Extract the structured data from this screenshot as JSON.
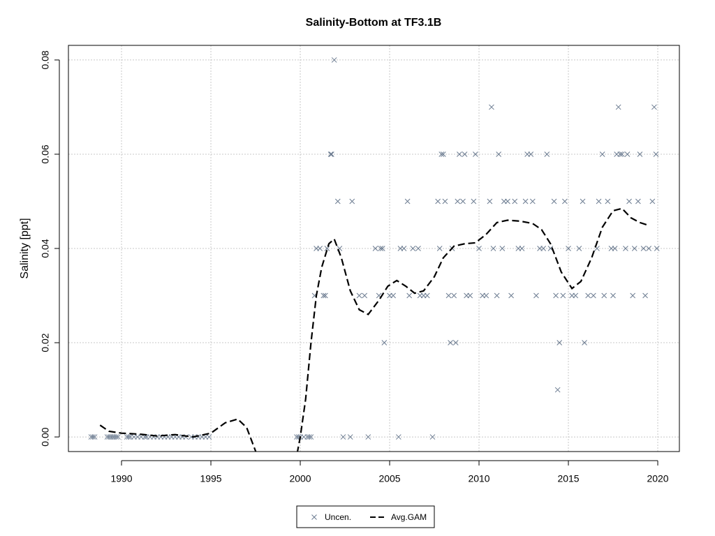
{
  "chart_data": {
    "type": "scatter",
    "title": "Salinity-Bottom at TF3.1B",
    "y_label": "Salinity [ppt]",
    "xlim": [
      1987.03,
      2021.21
    ],
    "ylim": [
      -0.0031,
      0.0831
    ],
    "xticks": [
      1990,
      1995,
      2000,
      2005,
      2010,
      2015,
      2020
    ],
    "yticks": [
      {
        "value": 0,
        "label": "0.00"
      },
      {
        "value": 0.02,
        "label": "0.02"
      },
      {
        "value": 0.04,
        "label": "0.04"
      },
      {
        "value": 0.06,
        "label": "0.06"
      },
      {
        "value": 0.08,
        "label": "0.08"
      }
    ],
    "grid": true,
    "legend": "bottom",
    "series": [
      {
        "name": "Uncen.",
        "type": "scatter",
        "color": "#6b7b90",
        "x": [
          1988.3,
          1988.4,
          1988.5,
          1989.2,
          1989.3,
          1989.4,
          1989.5,
          1989.6,
          1989.7,
          1989.8,
          1990.3,
          1990.4,
          1990.5,
          1990.7,
          1990.9,
          1991.1,
          1991.3,
          1991.4,
          1991.6,
          1991.8,
          1992.0,
          1992.2,
          1992.4,
          1992.6,
          1992.8,
          1993.0,
          1993.2,
          1993.4,
          1993.6,
          1993.9,
          1994.1,
          1994.3,
          1994.5,
          1994.7,
          1994.9,
          1999.8,
          1999.9,
          2000.0,
          2000.2,
          2000.4,
          2000.5,
          2000.6,
          2000.8,
          2000.9,
          2001.1,
          2001.3,
          2001.4,
          2001.5,
          2001.7,
          2001.75,
          2001.9,
          2002.1,
          2002.2,
          2002.4,
          2002.8,
          2002.9,
          2003.3,
          2003.6,
          2003.8,
          2004.2,
          2004.4,
          2004.5,
          2004.6,
          2004.7,
          2005.0,
          2005.2,
          2005.5,
          2005.6,
          2005.8,
          2006.0,
          2006.1,
          2006.3,
          2006.6,
          2006.7,
          2006.9,
          2007.1,
          2007.4,
          2007.7,
          2007.8,
          2007.9,
          2008.0,
          2008.1,
          2008.3,
          2008.4,
          2008.5,
          2008.6,
          2008.7,
          2008.8,
          2008.9,
          2009.1,
          2009.2,
          2009.3,
          2009.5,
          2009.7,
          2009.8,
          2010.0,
          2010.2,
          2010.4,
          2010.6,
          2010.7,
          2010.8,
          2011.0,
          2011.1,
          2011.3,
          2011.4,
          2011.6,
          2011.8,
          2012.0,
          2012.2,
          2012.4,
          2012.6,
          2012.7,
          2012.9,
          2013.0,
          2013.2,
          2013.4,
          2013.6,
          2013.8,
          2014.0,
          2014.2,
          2014.3,
          2014.4,
          2014.5,
          2014.7,
          2014.8,
          2015.0,
          2015.2,
          2015.4,
          2015.6,
          2015.8,
          2015.9,
          2016.1,
          2016.4,
          2016.6,
          2016.7,
          2016.9,
          2017.0,
          2017.2,
          2017.4,
          2017.5,
          2017.6,
          2017.7,
          2017.8,
          2017.9,
          2018.0,
          2018.2,
          2018.3,
          2018.4,
          2018.6,
          2018.7,
          2018.9,
          2019.0,
          2019.2,
          2019.3,
          2019.5,
          2019.7,
          2019.8,
          2019.9,
          2019.95
        ],
        "values": [
          0,
          0,
          0,
          0,
          0,
          0,
          0,
          0,
          0,
          0,
          0,
          0,
          0,
          0,
          0,
          0,
          0,
          0,
          0,
          0,
          0,
          0,
          0,
          0,
          0,
          0,
          0,
          0,
          0,
          0,
          0,
          0,
          0,
          0,
          0,
          0,
          0,
          0,
          0,
          0,
          0,
          0,
          0.03,
          0.04,
          0.04,
          0.03,
          0.03,
          0.04,
          0.06,
          0.06,
          0.08,
          0.05,
          0.04,
          0,
          0,
          0.05,
          0.03,
          0.03,
          0,
          0.04,
          0.03,
          0.04,
          0.04,
          0.02,
          0.03,
          0.03,
          0,
          0.04,
          0.04,
          0.05,
          0.03,
          0.04,
          0.04,
          0.03,
          0.03,
          0.03,
          0,
          0.05,
          0.04,
          0.06,
          0.06,
          0.05,
          0.03,
          0.02,
          0.04,
          0.03,
          0.02,
          0.05,
          0.06,
          0.05,
          0.06,
          0.03,
          0.03,
          0.05,
          0.06,
          0.04,
          0.03,
          0.03,
          0.05,
          0.07,
          0.04,
          0.03,
          0.06,
          0.04,
          0.05,
          0.05,
          0.03,
          0.05,
          0.04,
          0.04,
          0.05,
          0.06,
          0.06,
          0.05,
          0.03,
          0.04,
          0.04,
          0.06,
          0.04,
          0.05,
          0.03,
          0.01,
          0.02,
          0.03,
          0.05,
          0.04,
          0.03,
          0.03,
          0.04,
          0.05,
          0.02,
          0.03,
          0.03,
          0.04,
          0.05,
          0.06,
          0.03,
          0.05,
          0.04,
          0.03,
          0.04,
          0.06,
          0.07,
          0.06,
          0.06,
          0.04,
          0.06,
          0.05,
          0.03,
          0.04,
          0.05,
          0.06,
          0.04,
          0.03,
          0.04,
          0.05,
          0.07,
          0.06,
          0.04
        ]
      },
      {
        "name": "Avg.GAM",
        "type": "line",
        "color": "#000000",
        "x": [
          1988.8,
          1989.3,
          1990,
          1991,
          1992,
          1993,
          1994,
          1995,
          1995.8,
          1996.5,
          1997,
          1997.6,
          1998.5,
          1999.5,
          2000.0,
          2000.3,
          2000.6,
          2000.9,
          2001.2,
          2001.6,
          2001.9,
          2002.3,
          2002.8,
          2003.3,
          2003.8,
          2004.4,
          2004.9,
          2005.4,
          2005.9,
          2006.4,
          2006.9,
          2007.5,
          2008.0,
          2008.6,
          2009.2,
          2009.8,
          2010.4,
          2011.0,
          2011.6,
          2012.3,
          2013.0,
          2013.5,
          2014.0,
          2014.6,
          2015.2,
          2015.7,
          2016.3,
          2016.9,
          2017.5,
          2018.0,
          2018.5,
          2019.0,
          2019.4
        ],
        "values": [
          0.0025,
          0.0012,
          0.0008,
          0.0006,
          0.0002,
          0.0005,
          0.0,
          0.0008,
          0.003,
          0.0038,
          0.002,
          -0.004,
          -0.02,
          -0.01,
          0.0,
          0.008,
          0.02,
          0.03,
          0.036,
          0.041,
          0.042,
          0.038,
          0.031,
          0.027,
          0.026,
          0.029,
          0.032,
          0.0332,
          0.032,
          0.0305,
          0.031,
          0.034,
          0.038,
          0.0405,
          0.041,
          0.0412,
          0.043,
          0.0455,
          0.046,
          0.0458,
          0.0453,
          0.044,
          0.041,
          0.035,
          0.0315,
          0.033,
          0.038,
          0.0445,
          0.048,
          0.0485,
          0.0465,
          0.0455,
          0.045
        ]
      }
    ]
  }
}
